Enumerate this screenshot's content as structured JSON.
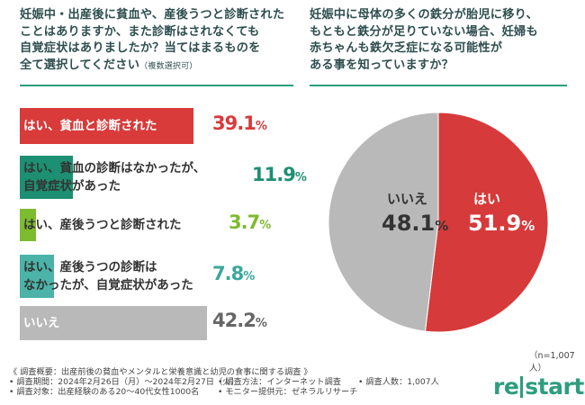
{
  "left": {
    "question_lines": [
      "妊娠中・出産後に貧血や、産後うつと診断された",
      "ことはありますか、また診断はされなくても",
      "自覚症状はありましたか？当てはまるものを",
      "全て選択してください"
    ],
    "question_note": "（複数選択可）"
  },
  "right": {
    "question_lines": [
      "妊娠中に母体の多くの鉄分が胎児に移り、",
      "もともと鉄分が足りていない場合、妊婦も",
      "赤ちゃんも鉄欠乏症になる可能性が",
      "ある事を知っていますか？"
    ]
  },
  "chart_data": [
    {
      "type": "bar",
      "orientation": "horizontal",
      "categories": [
        "はい、貧血と診断された",
        "はい、貧血の診断はなかったが、自覚症状があった",
        "はい、産後うつと診断された",
        "はい、産後うつの診断はなかったが、自覚症状があった",
        "いいえ"
      ],
      "label_lines": [
        [
          "はい、貧血と診断された"
        ],
        [
          "はい、貧血の診断はなかったが、",
          "自覚症状があった"
        ],
        [
          "はい、産後うつと診断された"
        ],
        [
          "はい、産後うつの診断は",
          "なかったが、自覚症状があった"
        ],
        [
          "いいえ"
        ]
      ],
      "values": [
        39.1,
        11.9,
        3.7,
        7.8,
        42.2
      ],
      "value_labels": [
        {
          "num": "39.1",
          "pct": "%"
        },
        {
          "num": "11.9",
          "pct": "%"
        },
        {
          "num": "3.7",
          "pct": "%"
        },
        {
          "num": "7.8",
          "pct": "%"
        },
        {
          "num": "42.2",
          "pct": "%"
        }
      ],
      "colors": [
        "#d93a3a",
        "#1d8f72",
        "#7dbb2f",
        "#4bb3a8",
        "#b9b9b9"
      ],
      "value_colors": [
        "#d93a3a",
        "#1d8f72",
        "#7dbb2f",
        "#3aa79c",
        "#666666"
      ]
    },
    {
      "type": "pie",
      "labels": [
        "はい",
        "いいえ"
      ],
      "values": [
        51.9,
        48.1
      ],
      "value_labels": [
        {
          "num": "51.9",
          "pct": "%"
        },
        {
          "num": "48.1",
          "pct": "%"
        }
      ],
      "colors": [
        "#d63a3a",
        "#b9b9b9"
      ]
    }
  ],
  "n_note": "（n=1,007人）",
  "footer": {
    "summary": "《 調査概要：出産前後の貧血やメンタルと栄養意識と幼児の食事に関する調査 》",
    "period": "• 調査期間：2024年2月26日（月）～2024年2月27日（火）",
    "method": "• 調査方法：インターネット調査",
    "count": "• 調査人数：1,007人",
    "target": "• 調査対象：出産経験のある20～40代女性1000名",
    "provider": "• モニター提供元：ゼネラルリサーチ"
  },
  "logo": {
    "left": "re",
    "right": "start"
  }
}
